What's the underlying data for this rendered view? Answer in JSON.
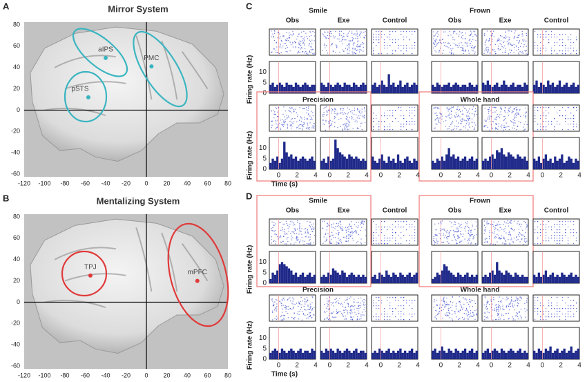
{
  "panel_a": {
    "label": "A",
    "title": "Mirror System",
    "xlim": [
      -120,
      80
    ],
    "ylim": [
      -60,
      80
    ],
    "xticks": [
      -120,
      -100,
      -80,
      -60,
      -40,
      -20,
      0,
      20,
      40,
      60,
      80
    ],
    "yticks": [
      80,
      60,
      40,
      20,
      0,
      -20,
      -40,
      -60
    ],
    "regions": [
      {
        "label": "aIPS",
        "x": -40,
        "y": 49
      },
      {
        "label": "PMC",
        "x": 5,
        "y": 41
      },
      {
        "label": "pSTS",
        "x": -57,
        "y": 12
      }
    ]
  },
  "panel_b": {
    "label": "B",
    "title": "Mentalizing System",
    "xlim": [
      -120,
      80
    ],
    "ylim": [
      -60,
      80
    ],
    "xticks": [
      -120,
      -100,
      -80,
      -60,
      -40,
      -20,
      0,
      20,
      40,
      60,
      80
    ],
    "yticks": [
      80,
      60,
      40,
      20,
      0,
      -20,
      -40,
      -60
    ],
    "regions": [
      {
        "label": "TPJ",
        "x": -55,
        "y": 25
      },
      {
        "label": "mPFC",
        "x": 50,
        "y": 20
      }
    ]
  },
  "panel_c": {
    "label": "C",
    "groups": [
      {
        "title": "Smile",
        "columns": [
          "Obs",
          "Exe",
          "Control"
        ]
      },
      {
        "title": "Frown",
        "columns": [
          "Obs",
          "Exe",
          "Control"
        ]
      }
    ],
    "row2_titles": [
      "Precision",
      "Whole hand"
    ],
    "ylabel": "Firing rate (Hz)",
    "xlabel": "Time (s)",
    "ylim": [
      0,
      15
    ],
    "yticks": [
      0,
      5,
      10
    ],
    "xlim": [
      -1,
      4
    ],
    "xticks": [
      0,
      2,
      4
    ],
    "highlight_row": 1,
    "histograms": [
      [
        [
          4,
          5,
          3,
          4,
          5,
          4,
          3,
          5,
          4,
          4,
          3,
          5,
          4,
          3,
          4,
          5,
          4,
          3,
          4,
          4
        ],
        [
          5,
          4,
          3,
          5,
          4,
          3,
          4,
          5,
          4,
          3,
          5,
          4,
          4,
          3,
          5,
          4,
          3,
          4,
          5,
          4
        ],
        [
          4,
          5,
          3,
          4,
          6,
          4,
          3,
          9,
          4,
          5,
          3,
          4,
          6,
          3,
          4,
          5,
          3,
          4,
          5,
          4
        ],
        [
          4,
          3,
          5,
          4,
          3,
          4,
          4,
          5,
          3,
          4,
          5,
          4,
          3,
          4,
          4,
          3,
          5,
          4,
          3,
          4
        ],
        [
          5,
          4,
          6,
          4,
          3,
          4,
          5,
          3,
          4,
          6,
          4,
          3,
          4,
          5,
          3,
          4,
          4,
          3,
          5,
          4
        ],
        [
          4,
          6,
          3,
          5,
          4,
          3,
          6,
          4,
          5,
          3,
          4,
          6,
          3,
          4,
          5,
          3,
          4,
          5,
          3,
          4
        ]
      ],
      [
        [
          3,
          5,
          4,
          6,
          3,
          5,
          13,
          8,
          6,
          7,
          5,
          6,
          4,
          5,
          6,
          5,
          4,
          5,
          6,
          4
        ],
        [
          4,
          5,
          3,
          6,
          4,
          5,
          14,
          10,
          8,
          7,
          6,
          5,
          7,
          6,
          5,
          6,
          5,
          4,
          5,
          4
        ],
        [
          6,
          4,
          3,
          5,
          7,
          4,
          3,
          6,
          4,
          5,
          3,
          7,
          4,
          3,
          5,
          6,
          4,
          3,
          5,
          4
        ],
        [
          4,
          3,
          5,
          4,
          6,
          4,
          7,
          10,
          6,
          7,
          5,
          6,
          4,
          5,
          6,
          4,
          5,
          6,
          4,
          5
        ],
        [
          4,
          5,
          4,
          6,
          7,
          5,
          9,
          8,
          10,
          7,
          6,
          8,
          7,
          6,
          5,
          7,
          6,
          5,
          6,
          4
        ],
        [
          5,
          4,
          6,
          3,
          5,
          7,
          4,
          5,
          3,
          6,
          4,
          5,
          7,
          3,
          4,
          6,
          5,
          3,
          5,
          4
        ]
      ]
    ]
  },
  "panel_d": {
    "label": "D",
    "groups": [
      {
        "title": "Smile",
        "columns": [
          "Obs",
          "Exe",
          "Control"
        ]
      },
      {
        "title": "Frown",
        "columns": [
          "Obs",
          "Exe",
          "Control"
        ]
      }
    ],
    "row2_titles": [
      "Precision",
      "Whole hand"
    ],
    "ylabel": "Firing rate (Hz)",
    "xlabel": "Time (s)",
    "ylim": [
      0,
      15
    ],
    "yticks": [
      0,
      5,
      10
    ],
    "xlim": [
      -1,
      4
    ],
    "xticks": [
      0,
      2,
      4
    ],
    "highlight_row": 0,
    "histograms": [
      [
        [
          2,
          5,
          4,
          6,
          9,
          10,
          9,
          8,
          7,
          6,
          4,
          5,
          3,
          4,
          5,
          3,
          4,
          5,
          3,
          4
        ],
        [
          3,
          4,
          3,
          5,
          4,
          7,
          6,
          5,
          4,
          6,
          5,
          3,
          4,
          5,
          4,
          3,
          4,
          3,
          4,
          3
        ],
        [
          3,
          4,
          2,
          5,
          4,
          3,
          6,
          4,
          3,
          5,
          4,
          3,
          5,
          4,
          3,
          4,
          5,
          3,
          4,
          5
        ],
        [
          2,
          3,
          5,
          4,
          6,
          9,
          8,
          6,
          5,
          4,
          3,
          5,
          4,
          3,
          4,
          5,
          3,
          4,
          3,
          4
        ],
        [
          3,
          4,
          3,
          5,
          6,
          4,
          10,
          6,
          5,
          4,
          6,
          5,
          4,
          3,
          5,
          4,
          3,
          4,
          3,
          3
        ],
        [
          4,
          3,
          5,
          3,
          4,
          6,
          3,
          4,
          5,
          3,
          4,
          3,
          5,
          4,
          3,
          4,
          5,
          3,
          4,
          3
        ]
      ],
      [
        [
          3,
          4,
          5,
          4,
          3,
          5,
          4,
          3,
          4,
          5,
          4,
          3,
          4,
          5,
          3,
          4,
          4,
          3,
          5,
          4
        ],
        [
          4,
          3,
          5,
          4,
          5,
          4,
          3,
          5,
          4,
          3,
          4,
          5,
          4,
          3,
          4,
          5,
          3,
          4,
          4,
          3
        ],
        [
          3,
          4,
          3,
          5,
          4,
          3,
          4,
          5,
          3,
          4,
          3,
          4,
          5,
          3,
          4,
          3,
          4,
          5,
          3,
          4
        ],
        [
          4,
          5,
          3,
          4,
          6,
          4,
          3,
          5,
          4,
          3,
          5,
          4,
          3,
          4,
          5,
          3,
          4,
          5,
          3,
          4
        ],
        [
          3,
          4,
          5,
          3,
          4,
          5,
          4,
          3,
          5,
          4,
          3,
          4,
          5,
          4,
          3,
          4,
          5,
          3,
          4,
          3
        ],
        [
          4,
          3,
          5,
          4,
          3,
          5,
          4,
          6,
          3,
          4,
          5,
          3,
          4,
          5,
          3,
          4,
          6,
          3,
          4,
          5
        ]
      ]
    ]
  }
}
